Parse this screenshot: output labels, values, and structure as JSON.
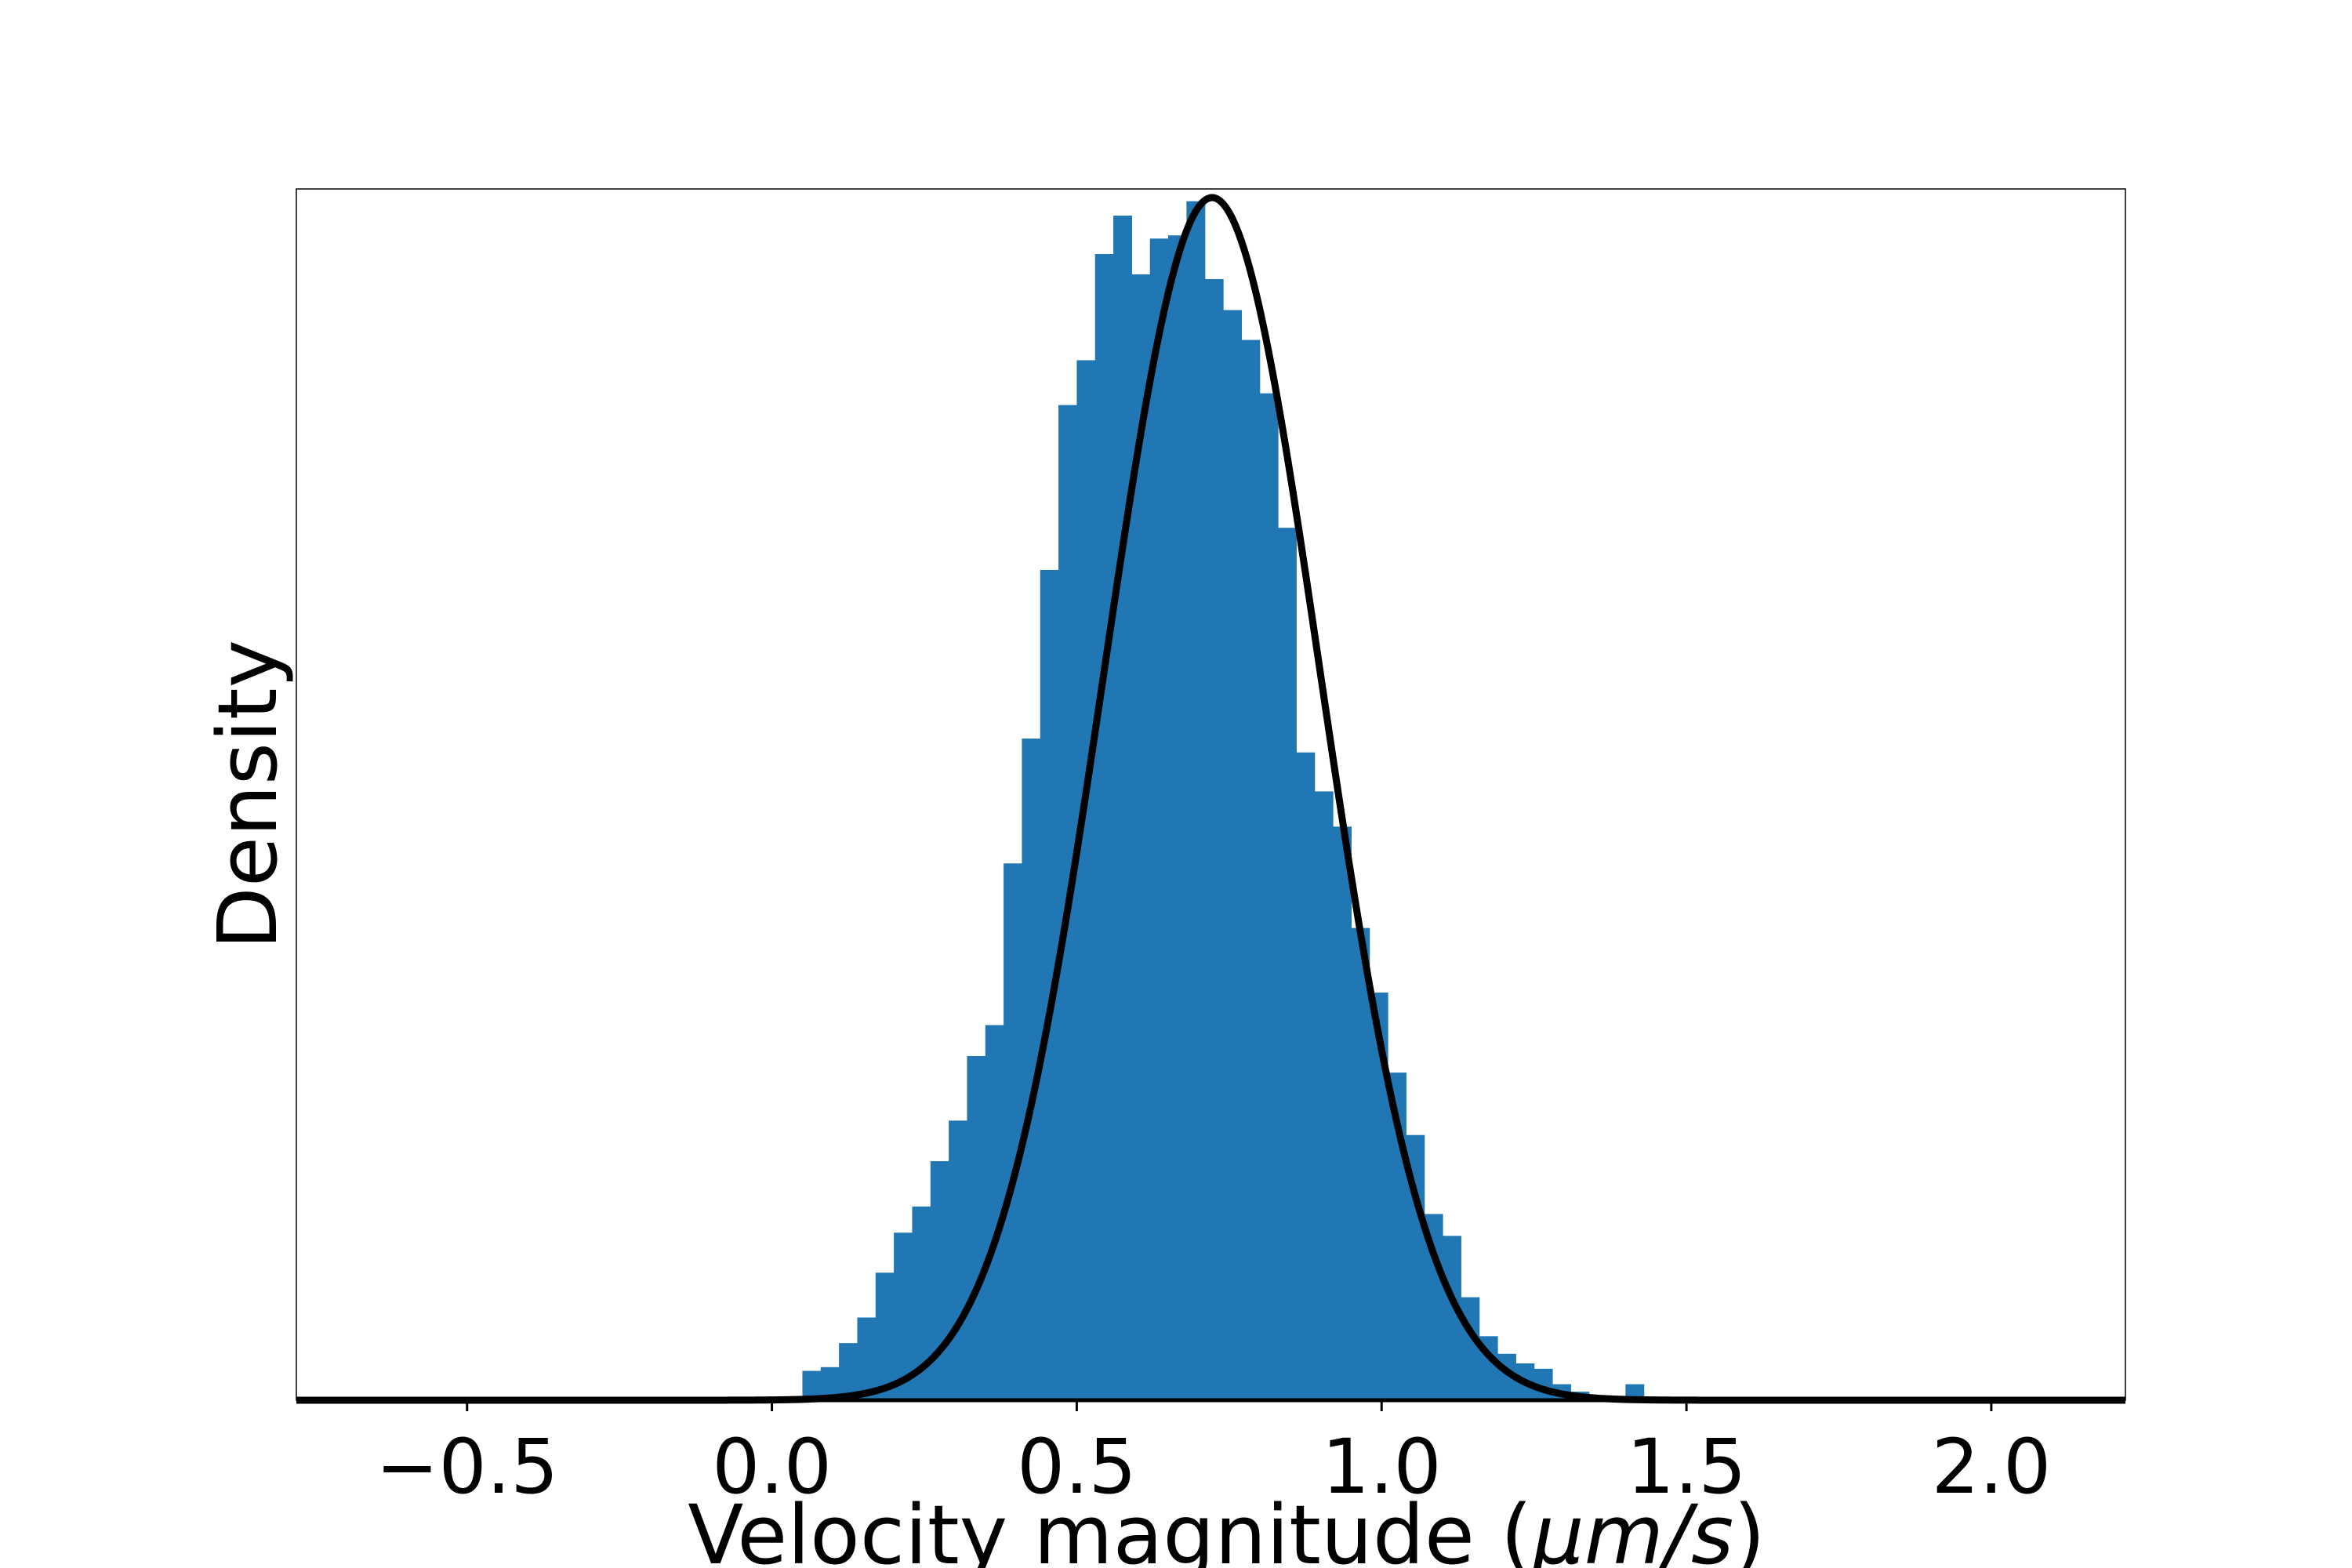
{
  "chart_data": {
    "type": "bar",
    "title": "",
    "xlabel": "Velocity magnitude (μm/s)",
    "ylabel": "Density",
    "xlim": [
      -0.78,
      2.22
    ],
    "ylim": [
      0,
      2.27
    ],
    "xticks": [
      -0.5,
      0.0,
      0.5,
      1.0,
      1.5,
      2.0
    ],
    "xtick_labels": [
      "−0.5",
      "0.0",
      "0.5",
      "1.0",
      "1.5",
      "2.0"
    ],
    "yticks_visible": false,
    "grid": false,
    "legend": "none",
    "histogram": {
      "bin_width": 0.03,
      "bin_start": 0.02,
      "color": "#2077b4",
      "densities": [
        0.006,
        0.055,
        0.062,
        0.107,
        0.155,
        0.239,
        0.314,
        0.363,
        0.448,
        0.524,
        0.645,
        0.703,
        1.006,
        1.24,
        1.556,
        1.865,
        1.949,
        2.148,
        2.22,
        2.11,
        2.177,
        2.183,
        2.247,
        2.101,
        2.043,
        1.987,
        1.887,
        1.635,
        1.214,
        1.141,
        1.075,
        0.885,
        0.764,
        0.614,
        0.497,
        0.349,
        0.308,
        0.193,
        0.12,
        0.087,
        0.069,
        0.059,
        0.03,
        0.016,
        0.007,
        0.006,
        0.03,
        0.003
      ]
    },
    "fit_curve": {
      "type": "normal",
      "mean": 0.722,
      "std": 0.177,
      "color": "#000000"
    }
  }
}
